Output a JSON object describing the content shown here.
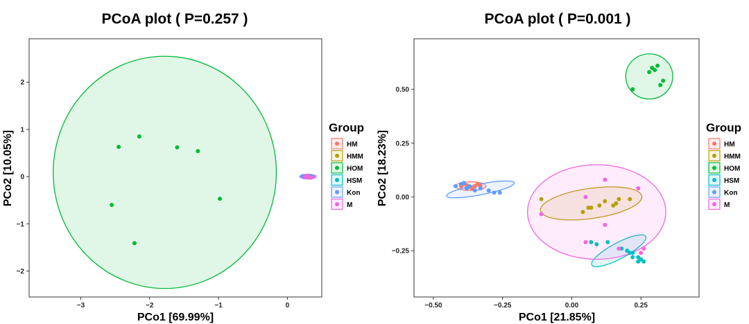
{
  "chart_data": [
    {
      "type": "scatter",
      "title": "PCoA plot ( P=0.257 )",
      "xlabel": "PCo1 [69.99%]",
      "ylabel": "PCo2 [10.05%]",
      "xlim": [
        -3.75,
        0.5
      ],
      "ylim": [
        -2.55,
        2.92
      ],
      "xticks": [
        -3,
        -2,
        -1,
        0
      ],
      "xtick_labels": [
        "−3",
        "−2",
        "−1",
        "0"
      ],
      "yticks": [
        -2,
        -1,
        0,
        1,
        2
      ],
      "ytick_labels": [
        "−2",
        "−1",
        "0",
        "1",
        "2"
      ],
      "grid": false,
      "legend": {
        "title": "Group",
        "position": "right",
        "items": [
          "HM",
          "HMM",
          "HOM",
          "HSM",
          "Kon",
          "M"
        ]
      },
      "series": [
        {
          "name": "HM",
          "color": "#F8766D",
          "points": [
            [
              0.27,
              0.0
            ],
            [
              0.33,
              -0.02
            ],
            [
              0.3,
              0.02
            ],
            [
              0.36,
              -0.01
            ],
            [
              0.25,
              0.01
            ],
            [
              0.31,
              0.0
            ]
          ],
          "ellipse": {
            "cx": 0.3,
            "cy": 0.0,
            "rx": 0.1,
            "ry": 0.045,
            "angle": 0
          }
        },
        {
          "name": "HMM",
          "color": "#B79F00",
          "points": [
            [
              0.28,
              0.0
            ],
            [
              0.3,
              0.01
            ],
            [
              0.34,
              -0.01
            ],
            [
              0.29,
              -0.01
            ]
          ],
          "ellipse": {
            "cx": 0.3,
            "cy": 0.0,
            "rx": 0.07,
            "ry": 0.03,
            "angle": 0
          }
        },
        {
          "name": "HOM",
          "color": "#00BA38",
          "points": [
            [
              -2.15,
              0.85
            ],
            [
              -2.45,
              0.63
            ],
            [
              -1.6,
              0.62
            ],
            [
              -1.3,
              0.54
            ],
            [
              -0.98,
              -0.47
            ],
            [
              -2.55,
              -0.6
            ],
            [
              -2.22,
              -1.41
            ]
          ],
          "ellipse": {
            "cx": -1.78,
            "cy": 0.09,
            "rx": 1.62,
            "ry": 2.46,
            "angle": 0
          }
        },
        {
          "name": "HSM",
          "color": "#00BFC4",
          "points": [
            [
              0.24,
              0.0
            ],
            [
              0.33,
              0.01
            ],
            [
              0.29,
              -0.01
            ],
            [
              0.35,
              0.0
            ]
          ],
          "ellipse": {
            "cx": 0.3,
            "cy": 0.0,
            "rx": 0.08,
            "ry": 0.03,
            "angle": 0
          }
        },
        {
          "name": "Kon",
          "color": "#619CFF",
          "points": [
            [
              0.22,
              0.01
            ],
            [
              0.26,
              0.0
            ],
            [
              0.3,
              0.01
            ],
            [
              0.32,
              -0.01
            ],
            [
              0.36,
              0.0
            ],
            [
              0.28,
              -0.01
            ]
          ],
          "ellipse": {
            "cx": 0.29,
            "cy": 0.0,
            "rx": 0.11,
            "ry": 0.04,
            "angle": 0
          }
        },
        {
          "name": "M",
          "color": "#F564E3",
          "points": [
            [
              0.26,
              -0.01
            ],
            [
              0.31,
              0.0
            ],
            [
              0.35,
              -0.02
            ],
            [
              0.29,
              0.02
            ]
          ],
          "ellipse": {
            "cx": 0.3,
            "cy": 0.0,
            "rx": 0.12,
            "ry": 0.05,
            "angle": 0
          }
        }
      ]
    },
    {
      "type": "scatter",
      "title": "PCoA plot ( P=0.001 )",
      "xlabel": "PCo1 [21.85%]",
      "ylabel": "PCo2 [18.23%]",
      "xlim": [
        -0.57,
        0.46
      ],
      "ylim": [
        -0.465,
        0.735
      ],
      "xticks": [
        -0.5,
        -0.25,
        0,
        0.25
      ],
      "xtick_labels": [
        "−0.50",
        "−0.25",
        "0.00",
        "0.25"
      ],
      "yticks": [
        -0.25,
        0,
        0.25,
        0.5
      ],
      "ytick_labels": [
        "−0.25",
        "0.00",
        "0.25",
        "0.50"
      ],
      "grid": false,
      "legend": {
        "title": "Group",
        "position": "right",
        "items": [
          "HM",
          "HMM",
          "HOM",
          "HSM",
          "Kon",
          "M"
        ]
      },
      "series": [
        {
          "name": "HM",
          "color": "#F8766D",
          "points": [
            [
              -0.4,
              0.05
            ],
            [
              -0.38,
              0.055
            ],
            [
              -0.36,
              0.04
            ],
            [
              -0.34,
              0.06
            ],
            [
              -0.39,
              0.06
            ],
            [
              -0.33,
              0.05
            ],
            [
              -0.37,
              0.045
            ],
            [
              -0.35,
              0.05
            ]
          ],
          "ellipse": {
            "cx": -0.365,
            "cy": 0.05,
            "rx": 0.055,
            "ry": 0.02,
            "angle": 0
          }
        },
        {
          "name": "HMM",
          "color": "#B79F00",
          "points": [
            [
              -0.11,
              -0.01
            ],
            [
              0.04,
              -0.07
            ],
            [
              0.06,
              -0.05
            ],
            [
              0.07,
              -0.05
            ],
            [
              0.1,
              -0.04
            ],
            [
              0.12,
              -0.02
            ],
            [
              0.15,
              -0.04
            ],
            [
              0.16,
              -0.03
            ],
            [
              0.17,
              -0.01
            ],
            [
              0.21,
              -0.01
            ]
          ],
          "ellipse": {
            "cx": 0.07,
            "cy": -0.03,
            "rx": 0.185,
            "ry": 0.07,
            "angle": 8
          }
        },
        {
          "name": "HOM",
          "color": "#00BA38",
          "points": [
            [
              0.22,
              0.5
            ],
            [
              0.28,
              0.58
            ],
            [
              0.29,
              0.6
            ],
            [
              0.3,
              0.59
            ],
            [
              0.31,
              0.61
            ],
            [
              0.32,
              0.52
            ],
            [
              0.33,
              0.54
            ]
          ],
          "ellipse": {
            "cx": 0.28,
            "cy": 0.56,
            "rx": 0.085,
            "ry": 0.105,
            "angle": 0
          }
        },
        {
          "name": "HSM",
          "color": "#00BFC4",
          "points": [
            [
              0.07,
              -0.21
            ],
            [
              0.09,
              -0.22
            ],
            [
              0.13,
              -0.21
            ],
            [
              0.18,
              -0.24
            ],
            [
              0.2,
              -0.25
            ],
            [
              0.21,
              -0.26
            ],
            [
              0.22,
              -0.26
            ],
            [
              0.22,
              -0.28
            ],
            [
              0.24,
              -0.28
            ],
            [
              0.24,
              -0.3
            ],
            [
              0.25,
              -0.29
            ],
            [
              0.26,
              -0.3
            ]
          ],
          "ellipse": {
            "cx": 0.17,
            "cy": -0.25,
            "rx": 0.11,
            "ry": 0.037,
            "angle": 28
          }
        },
        {
          "name": "Kon",
          "color": "#619CFF",
          "points": [
            [
              -0.42,
              0.05
            ],
            [
              -0.4,
              0.06
            ],
            [
              -0.38,
              0.04
            ],
            [
              -0.37,
              0.05
            ],
            [
              -0.35,
              0.03
            ],
            [
              -0.33,
              0.04
            ],
            [
              -0.3,
              0.03
            ],
            [
              -0.28,
              0.02
            ],
            [
              -0.26,
              0.02
            ],
            [
              -0.39,
              0.065
            ]
          ],
          "ellipse": {
            "cx": -0.33,
            "cy": 0.035,
            "rx": 0.125,
            "ry": 0.025,
            "angle": 11
          }
        },
        {
          "name": "M",
          "color": "#F564E3",
          "points": [
            [
              -0.11,
              -0.08
            ],
            [
              0.05,
              -0.21
            ],
            [
              0.12,
              0.08
            ],
            [
              0.12,
              -0.13
            ],
            [
              0.17,
              -0.24
            ],
            [
              0.24,
              0.04
            ],
            [
              0.25,
              -0.26
            ],
            [
              0.26,
              -0.24
            ],
            [
              0.05,
              0.0
            ]
          ],
          "ellipse": {
            "cx": 0.09,
            "cy": -0.07,
            "rx": 0.25,
            "ry": 0.22,
            "angle": 0
          }
        }
      ]
    }
  ]
}
